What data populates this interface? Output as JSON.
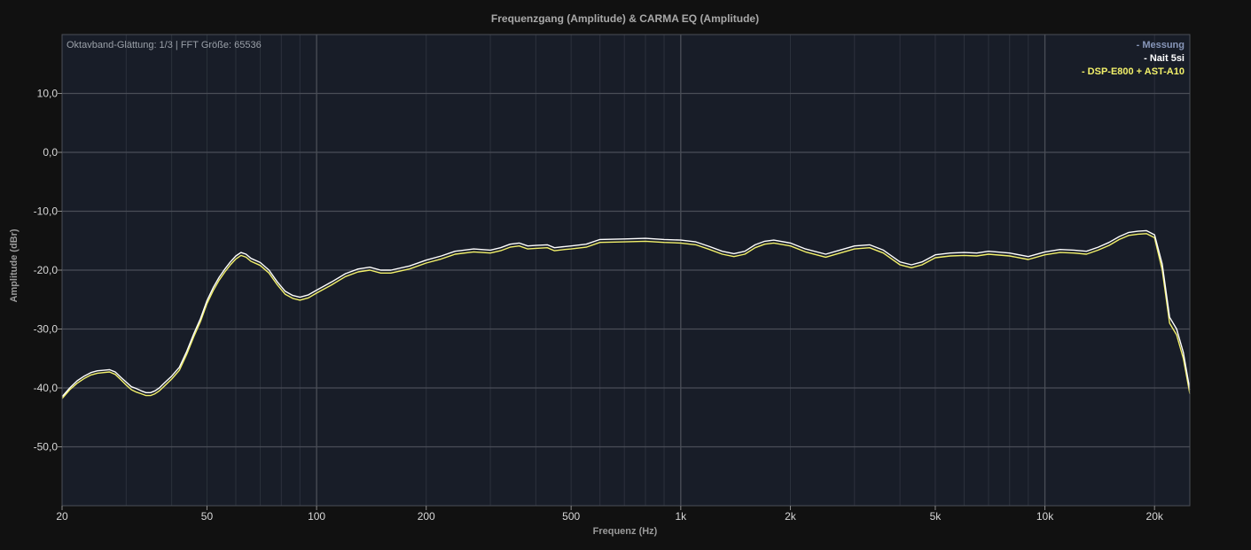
{
  "colors": {
    "background": "#111111",
    "plot_background": "#181d28",
    "grid_major": "#4a4e57",
    "grid_minor": "#2c313c",
    "legend_messung": "#8796b9",
    "nait": "#ffffff",
    "dsp": "#f2f06a"
  },
  "chart_data": {
    "type": "line",
    "title": "Frequenzgang (Amplitude) & CARMA EQ (Amplitude)",
    "xlabel": "Frequenz (Hz)",
    "ylabel": "Amplitude (dBr)",
    "info": "Oktavband-Glättung: 1/3 | FFT Größe: 65536",
    "x_scale": "log",
    "xlim": [
      20,
      25000
    ],
    "ylim": [
      -60,
      20
    ],
    "grid": true,
    "legend_position": "top-right",
    "x_ticks": [
      {
        "value": 20,
        "label": "20"
      },
      {
        "value": 50,
        "label": "50"
      },
      {
        "value": 100,
        "label": "100"
      },
      {
        "value": 200,
        "label": "200"
      },
      {
        "value": 500,
        "label": "500"
      },
      {
        "value": 1000,
        "label": "1k"
      },
      {
        "value": 2000,
        "label": "2k"
      },
      {
        "value": 5000,
        "label": "5k"
      },
      {
        "value": 10000,
        "label": "10k"
      },
      {
        "value": 20000,
        "label": "20k"
      }
    ],
    "y_ticks": [
      {
        "value": 10,
        "label": "10,0"
      },
      {
        "value": 0,
        "label": "0,0"
      },
      {
        "value": -10,
        "label": "-10,0"
      },
      {
        "value": -20,
        "label": "-20,0"
      },
      {
        "value": -30,
        "label": "-30,0"
      },
      {
        "value": -40,
        "label": "-40,0"
      },
      {
        "value": -50,
        "label": "-50,0"
      }
    ],
    "legend": [
      {
        "label": "- Messung",
        "color": "#8796b9"
      },
      {
        "label": "- Nait 5si",
        "color": "#ffffff"
      },
      {
        "label": "- DSP-E800 + AST-A10",
        "color": "#f2f06a"
      }
    ],
    "series": [
      {
        "name": "Nait 5si",
        "color": "#ffffff",
        "points": [
          [
            20,
            -41.5
          ],
          [
            21,
            -40.0
          ],
          [
            22,
            -38.8
          ],
          [
            23,
            -38.0
          ],
          [
            24,
            -37.4
          ],
          [
            25,
            -37.1
          ],
          [
            26,
            -37.0
          ],
          [
            27,
            -36.9
          ],
          [
            28,
            -37.3
          ],
          [
            29,
            -38.2
          ],
          [
            30,
            -39.0
          ],
          [
            31,
            -39.8
          ],
          [
            32,
            -40.1
          ],
          [
            33,
            -40.5
          ],
          [
            34,
            -40.8
          ],
          [
            35,
            -40.8
          ],
          [
            36,
            -40.5
          ],
          [
            37,
            -40.0
          ],
          [
            38,
            -39.3
          ],
          [
            40,
            -38.0
          ],
          [
            42,
            -36.5
          ],
          [
            44,
            -33.8
          ],
          [
            46,
            -30.8
          ],
          [
            48,
            -28.2
          ],
          [
            50,
            -25.2
          ],
          [
            52,
            -23.0
          ],
          [
            54,
            -21.2
          ],
          [
            56,
            -19.8
          ],
          [
            58,
            -18.6
          ],
          [
            60,
            -17.6
          ],
          [
            62,
            -17.0
          ],
          [
            64,
            -17.3
          ],
          [
            66,
            -18.0
          ],
          [
            70,
            -18.7
          ],
          [
            74,
            -20.0
          ],
          [
            78,
            -22.0
          ],
          [
            82,
            -23.6
          ],
          [
            86,
            -24.3
          ],
          [
            90,
            -24.6
          ],
          [
            95,
            -24.2
          ],
          [
            100,
            -23.4
          ],
          [
            110,
            -22.0
          ],
          [
            120,
            -20.6
          ],
          [
            130,
            -19.8
          ],
          [
            140,
            -19.5
          ],
          [
            150,
            -20.0
          ],
          [
            160,
            -20.0
          ],
          [
            180,
            -19.3
          ],
          [
            200,
            -18.3
          ],
          [
            220,
            -17.6
          ],
          [
            240,
            -16.8
          ],
          [
            270,
            -16.4
          ],
          [
            300,
            -16.6
          ],
          [
            320,
            -16.2
          ],
          [
            340,
            -15.6
          ],
          [
            360,
            -15.4
          ],
          [
            380,
            -15.9
          ],
          [
            400,
            -15.8
          ],
          [
            430,
            -15.7
          ],
          [
            450,
            -16.2
          ],
          [
            480,
            -16.0
          ],
          [
            500,
            -15.9
          ],
          [
            550,
            -15.6
          ],
          [
            600,
            -14.8
          ],
          [
            700,
            -14.7
          ],
          [
            800,
            -14.6
          ],
          [
            900,
            -14.8
          ],
          [
            1000,
            -14.9
          ],
          [
            1100,
            -15.2
          ],
          [
            1200,
            -16.0
          ],
          [
            1300,
            -16.8
          ],
          [
            1400,
            -17.2
          ],
          [
            1500,
            -16.8
          ],
          [
            1600,
            -15.7
          ],
          [
            1700,
            -15.1
          ],
          [
            1800,
            -14.9
          ],
          [
            2000,
            -15.4
          ],
          [
            2200,
            -16.4
          ],
          [
            2500,
            -17.3
          ],
          [
            2700,
            -16.7
          ],
          [
            3000,
            -15.9
          ],
          [
            3300,
            -15.7
          ],
          [
            3600,
            -16.6
          ],
          [
            4000,
            -18.6
          ],
          [
            4300,
            -19.1
          ],
          [
            4600,
            -18.6
          ],
          [
            5000,
            -17.4
          ],
          [
            5500,
            -17.1
          ],
          [
            6000,
            -17.0
          ],
          [
            6500,
            -17.1
          ],
          [
            7000,
            -16.8
          ],
          [
            8000,
            -17.1
          ],
          [
            9000,
            -17.7
          ],
          [
            10000,
            -16.9
          ],
          [
            11000,
            -16.5
          ],
          [
            12000,
            -16.6
          ],
          [
            13000,
            -16.8
          ],
          [
            14000,
            -16.1
          ],
          [
            15000,
            -15.3
          ],
          [
            16000,
            -14.3
          ],
          [
            17000,
            -13.6
          ],
          [
            18000,
            -13.4
          ],
          [
            19000,
            -13.3
          ],
          [
            20000,
            -14.0
          ],
          [
            21000,
            -19.0
          ],
          [
            22000,
            -28.0
          ],
          [
            23000,
            -30.0
          ],
          [
            24000,
            -34.0
          ],
          [
            25000,
            -40.3
          ]
        ]
      },
      {
        "name": "DSP-E800 + AST-A10",
        "color": "#f2f06a",
        "points": [
          [
            20,
            -41.8
          ],
          [
            21,
            -40.3
          ],
          [
            22,
            -39.2
          ],
          [
            23,
            -38.4
          ],
          [
            24,
            -37.8
          ],
          [
            25,
            -37.5
          ],
          [
            26,
            -37.4
          ],
          [
            27,
            -37.3
          ],
          [
            28,
            -37.7
          ],
          [
            29,
            -38.6
          ],
          [
            30,
            -39.5
          ],
          [
            31,
            -40.3
          ],
          [
            32,
            -40.7
          ],
          [
            33,
            -41.0
          ],
          [
            34,
            -41.3
          ],
          [
            35,
            -41.3
          ],
          [
            36,
            -41.0
          ],
          [
            37,
            -40.5
          ],
          [
            38,
            -39.8
          ],
          [
            40,
            -38.5
          ],
          [
            42,
            -37.0
          ],
          [
            44,
            -34.3
          ],
          [
            46,
            -31.3
          ],
          [
            48,
            -28.7
          ],
          [
            50,
            -25.7
          ],
          [
            52,
            -23.5
          ],
          [
            54,
            -21.7
          ],
          [
            56,
            -20.3
          ],
          [
            58,
            -19.1
          ],
          [
            60,
            -18.1
          ],
          [
            62,
            -17.5
          ],
          [
            64,
            -17.8
          ],
          [
            66,
            -18.5
          ],
          [
            70,
            -19.2
          ],
          [
            74,
            -20.5
          ],
          [
            78,
            -22.5
          ],
          [
            82,
            -24.1
          ],
          [
            86,
            -24.8
          ],
          [
            90,
            -25.1
          ],
          [
            95,
            -24.7
          ],
          [
            100,
            -23.9
          ],
          [
            110,
            -22.5
          ],
          [
            120,
            -21.1
          ],
          [
            130,
            -20.3
          ],
          [
            140,
            -20.0
          ],
          [
            150,
            -20.5
          ],
          [
            160,
            -20.5
          ],
          [
            180,
            -19.8
          ],
          [
            200,
            -18.8
          ],
          [
            220,
            -18.1
          ],
          [
            240,
            -17.3
          ],
          [
            270,
            -16.9
          ],
          [
            300,
            -17.1
          ],
          [
            320,
            -16.7
          ],
          [
            340,
            -16.1
          ],
          [
            360,
            -15.9
          ],
          [
            380,
            -16.4
          ],
          [
            400,
            -16.3
          ],
          [
            430,
            -16.2
          ],
          [
            450,
            -16.7
          ],
          [
            480,
            -16.5
          ],
          [
            500,
            -16.4
          ],
          [
            550,
            -16.1
          ],
          [
            600,
            -15.3
          ],
          [
            700,
            -15.2
          ],
          [
            800,
            -15.1
          ],
          [
            900,
            -15.3
          ],
          [
            1000,
            -15.4
          ],
          [
            1100,
            -15.7
          ],
          [
            1200,
            -16.5
          ],
          [
            1300,
            -17.3
          ],
          [
            1400,
            -17.7
          ],
          [
            1500,
            -17.3
          ],
          [
            1600,
            -16.2
          ],
          [
            1700,
            -15.6
          ],
          [
            1800,
            -15.4
          ],
          [
            2000,
            -15.9
          ],
          [
            2200,
            -16.9
          ],
          [
            2500,
            -17.8
          ],
          [
            2700,
            -17.2
          ],
          [
            3000,
            -16.4
          ],
          [
            3300,
            -16.2
          ],
          [
            3600,
            -17.1
          ],
          [
            4000,
            -19.1
          ],
          [
            4300,
            -19.6
          ],
          [
            4600,
            -19.1
          ],
          [
            5000,
            -17.9
          ],
          [
            5500,
            -17.6
          ],
          [
            6000,
            -17.5
          ],
          [
            6500,
            -17.6
          ],
          [
            7000,
            -17.3
          ],
          [
            8000,
            -17.6
          ],
          [
            9000,
            -18.2
          ],
          [
            10000,
            -17.4
          ],
          [
            11000,
            -17.0
          ],
          [
            12000,
            -17.1
          ],
          [
            13000,
            -17.3
          ],
          [
            14000,
            -16.6
          ],
          [
            15000,
            -15.8
          ],
          [
            16000,
            -14.8
          ],
          [
            17000,
            -14.1
          ],
          [
            18000,
            -13.9
          ],
          [
            19000,
            -13.8
          ],
          [
            20000,
            -14.5
          ],
          [
            21000,
            -20.0
          ],
          [
            22000,
            -29.0
          ],
          [
            23000,
            -31.0
          ],
          [
            24000,
            -35.0
          ],
          [
            25000,
            -41.0
          ]
        ]
      }
    ]
  }
}
